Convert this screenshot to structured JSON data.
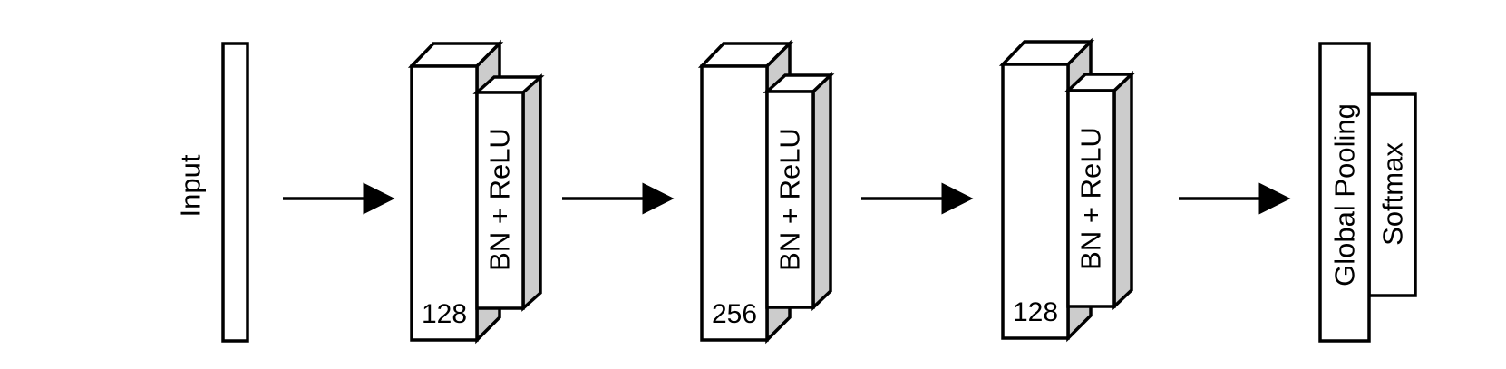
{
  "colors": {
    "stroke": "#000000",
    "fill": "#ffffff",
    "side_fill": "#cccccc"
  },
  "input": {
    "label": "Input"
  },
  "blocks": [
    {
      "filters": "128",
      "activation": "BN + ReLU"
    },
    {
      "filters": "256",
      "activation": "BN + ReLU"
    },
    {
      "filters": "128",
      "activation": "BN + ReLU"
    }
  ],
  "output": {
    "pooling": "Global Pooling",
    "classifier": "Softmax"
  }
}
